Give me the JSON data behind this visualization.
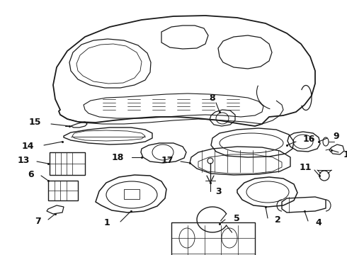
{
  "background_color": "#ffffff",
  "line_color": "#1a1a1a",
  "label_color": "#111111",
  "label_fontsize": 9,
  "label_fontweight": "bold",
  "fig_width": 4.9,
  "fig_height": 3.6,
  "dpi": 100
}
